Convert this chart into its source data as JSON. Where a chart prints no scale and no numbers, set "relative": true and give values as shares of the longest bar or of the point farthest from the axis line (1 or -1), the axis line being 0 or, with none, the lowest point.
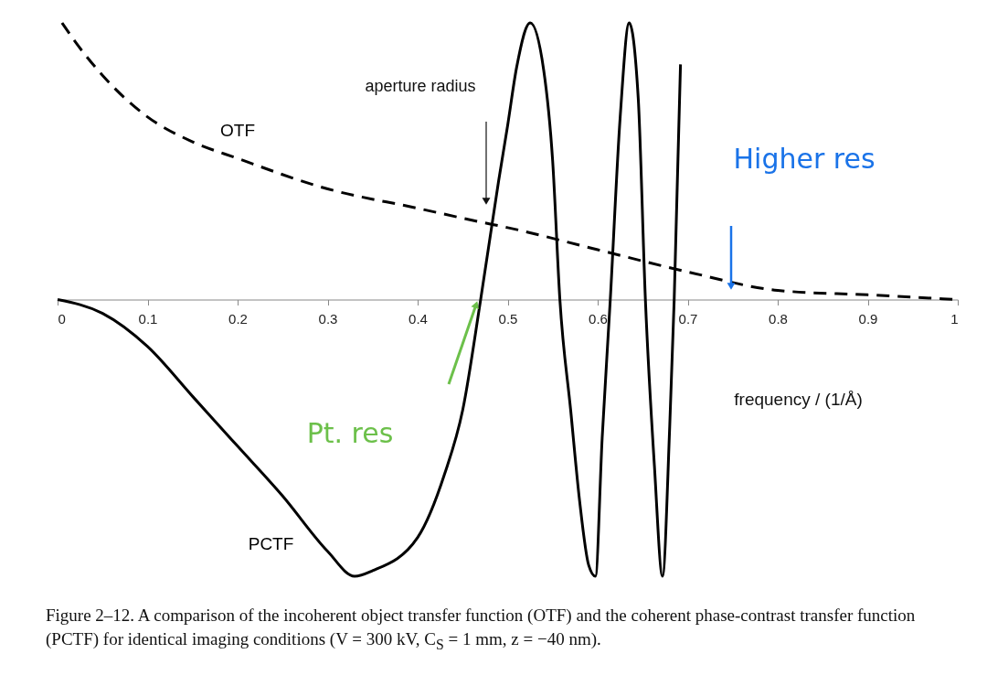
{
  "chart_data": {
    "type": "line",
    "relative": true,
    "xlabel": "frequency / (1/Å)",
    "xlim": [
      0,
      1
    ],
    "xticks": [
      0,
      0.1,
      0.2,
      0.3,
      0.4,
      0.5,
      0.6,
      0.7,
      0.8,
      0.9,
      1
    ],
    "series": [
      {
        "name": "OTF",
        "color": "#000000",
        "line_style": "dashed",
        "x": [
          0.005,
          0.02,
          0.05,
          0.1,
          0.15,
          0.2,
          0.3,
          0.4,
          0.47,
          0.5,
          0.6,
          0.7,
          0.8,
          0.9,
          1.0
        ],
        "values": [
          1,
          0.93,
          0.81,
          0.66,
          0.57,
          0.51,
          0.4,
          0.33,
          0.28,
          0.26,
          0.18,
          0.1,
          0.033,
          0.017,
          0
        ]
      },
      {
        "name": "PCTF",
        "color": "#000000",
        "x": [
          0,
          0.05,
          0.1,
          0.15,
          0.2,
          0.25,
          0.3,
          0.33,
          0.35,
          0.4,
          0.43,
          0.45,
          0.47,
          0.49,
          0.5,
          0.51,
          0.525,
          0.54,
          0.55,
          0.558,
          0.57,
          0.58,
          0.59,
          0.5975,
          0.605,
          0.614,
          0.625,
          0.635,
          0.645,
          0.653,
          0.663,
          0.672,
          0.68,
          0.685,
          0.692
        ],
        "values": [
          0,
          -0.05,
          -0.17,
          -0.35,
          -0.53,
          -0.71,
          -0.91,
          -1,
          -0.98,
          -0.86,
          -0.63,
          -0.4,
          0,
          0.43,
          0.63,
          0.84,
          1,
          0.83,
          0.5,
          0,
          -0.4,
          -0.73,
          -0.96,
          -1,
          -0.5,
          0,
          0.66,
          1,
          0.73,
          0,
          -0.6,
          -1,
          -0.46,
          0,
          0.85
        ]
      }
    ],
    "annotations": [
      "aperture radius",
      "Higher res",
      "Pt. res",
      "Figure 2–12. A comparison of the incoherent object transfer function (OTF) and the coherent phase-contrast transfer function (PCTF) for identical imaging conditions (V = 300 kV, C$_{S}$ = 1 mm, z = −40 nm)."
    ]
  }
}
